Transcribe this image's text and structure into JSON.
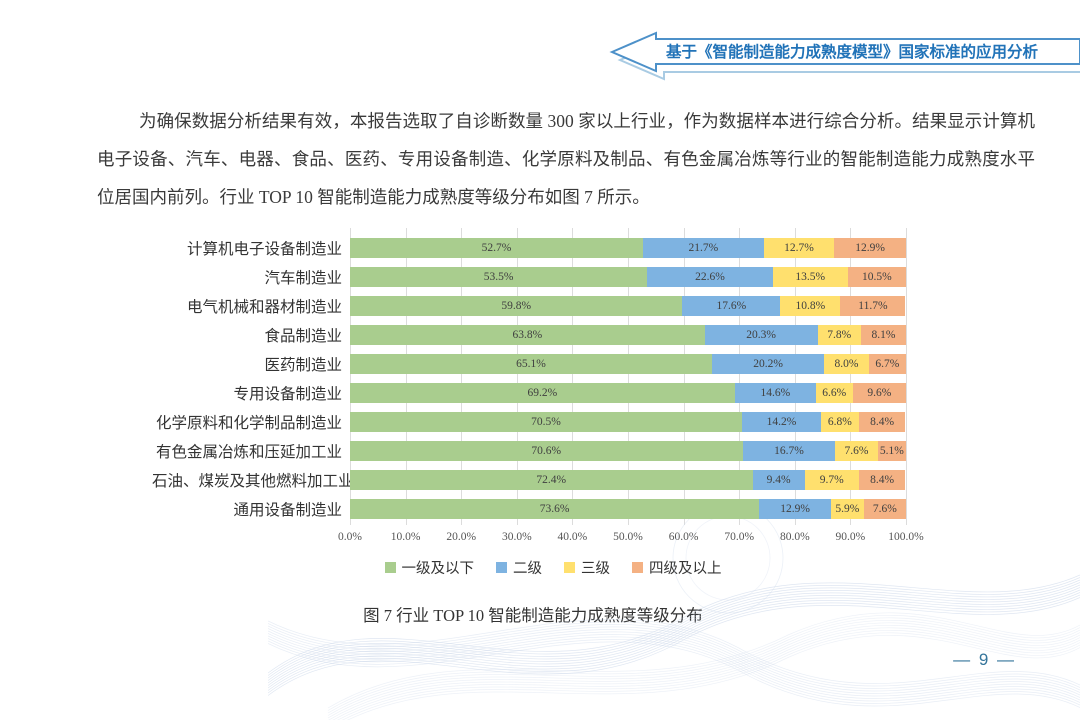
{
  "header": {
    "banner_title": "基于《智能制造能力成熟度模型》国家标准的应用分析"
  },
  "paragraph": {
    "text": "为确保数据分析结果有效，本报告选取了自诊断数量 300 家以上行业，作为数据样本进行综合分析。结果显示计算机电子设备、汽车、电器、食品、医药、专用设备制造、化学原料及制品、有色金属冶炼等行业的智能制造能力成熟度水平位居国内前列。行业 TOP 10 智能制造能力成熟度等级分布如图 7 所示。"
  },
  "chart_data": {
    "type": "bar",
    "orientation": "horizontal-stacked",
    "title": "图 7 行业 TOP 10 智能制造能力成熟度等级分布",
    "xlabel": "",
    "ylabel": "",
    "xlim": [
      0,
      100
    ],
    "grid": true,
    "legend_position": "bottom",
    "categories": [
      "计算机电子设备制造业",
      "汽车制造业",
      "电气机械和器材制造业",
      "食品制造业",
      "医药制造业",
      "专用设备制造业",
      "化学原料和化学制品制造业",
      "有色金属冶炼和压延加工业",
      "石油、煤炭及其他燃料加工业",
      "通用设备制造业"
    ],
    "series": [
      {
        "name": "一级及以下",
        "color": "#A9CD8E",
        "values": [
          52.7,
          53.5,
          59.8,
          63.8,
          65.1,
          69.2,
          70.5,
          70.6,
          72.4,
          73.6
        ]
      },
      {
        "name": "二级",
        "color": "#7EB3E1",
        "values": [
          21.7,
          22.6,
          17.6,
          20.3,
          20.2,
          14.6,
          14.2,
          16.7,
          9.4,
          12.9
        ]
      },
      {
        "name": "三级",
        "color": "#FFE06E",
        "values": [
          12.7,
          13.5,
          10.8,
          7.8,
          8.0,
          6.6,
          6.8,
          7.6,
          9.7,
          5.9
        ]
      },
      {
        "name": "四级及以上",
        "color": "#F4B183",
        "values": [
          12.9,
          10.5,
          11.7,
          8.1,
          6.7,
          9.6,
          8.4,
          5.1,
          8.4,
          7.6
        ]
      }
    ],
    "x_ticks": [
      "0.0%",
      "10.0%",
      "20.0%",
      "30.0%",
      "40.0%",
      "50.0%",
      "60.0%",
      "70.0%",
      "80.0%",
      "90.0%",
      "100.0%"
    ],
    "value_label_suffix": "%"
  },
  "footer": {
    "page_number": "9",
    "page_number_display": "— 9 —"
  },
  "colors": {
    "banner_stroke": "#4D91C9",
    "banner_shadow": "#A9CBE3",
    "banner_text": "#2173B8",
    "gridline": "#DCDCDC",
    "page_number": "#35759B"
  }
}
